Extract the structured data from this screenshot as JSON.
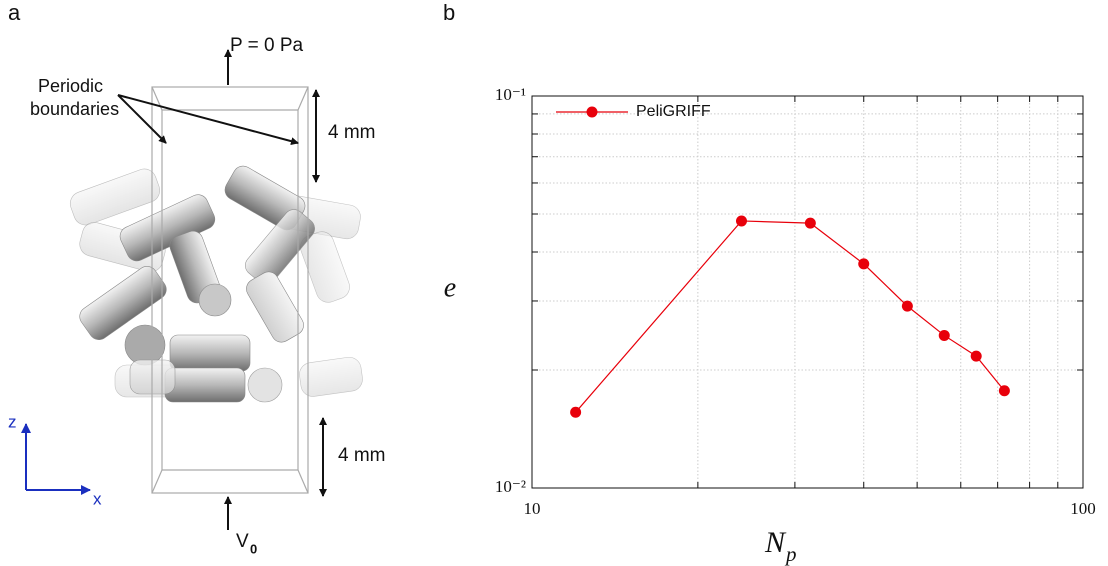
{
  "panel_labels": [
    "a",
    "b"
  ],
  "illustration": {
    "pressure_label": "P = 0 Pa",
    "boundary_label": [
      "Periodic",
      "boundaries"
    ],
    "height_labels": [
      "4 mm",
      "4 mm"
    ],
    "axis_labels": [
      "z",
      "x"
    ],
    "velocity_label": {
      "main": "V",
      "sub": "0"
    }
  },
  "chart_data": {
    "type": "line",
    "xlabel": {
      "main": "N",
      "sub": "p"
    },
    "ylabel": "e",
    "x": [
      12,
      24,
      32,
      40,
      48,
      56,
      64,
      72
    ],
    "series": [
      {
        "name": "PeliGRIFF",
        "color": "#e8000b",
        "values": [
          0.0156,
          0.048,
          0.0474,
          0.0373,
          0.0291,
          0.0245,
          0.0217,
          0.0177
        ]
      }
    ],
    "xlim": [
      10,
      100
    ],
    "ylim": [
      0.01,
      0.1
    ],
    "xticks": [
      10,
      100
    ],
    "yticks": [
      {
        "value": 0.01,
        "label": "10⁻²"
      },
      {
        "value": 0.1,
        "label": "10⁻¹"
      }
    ],
    "xminorticks": [
      20,
      30,
      40,
      50,
      60,
      70,
      80,
      90
    ],
    "yminorticks": [
      0.02,
      0.03,
      0.04,
      0.05,
      0.06,
      0.07,
      0.08,
      0.09
    ],
    "xscale": "log",
    "yscale": "log",
    "grid": true,
    "legend": "upper left"
  }
}
